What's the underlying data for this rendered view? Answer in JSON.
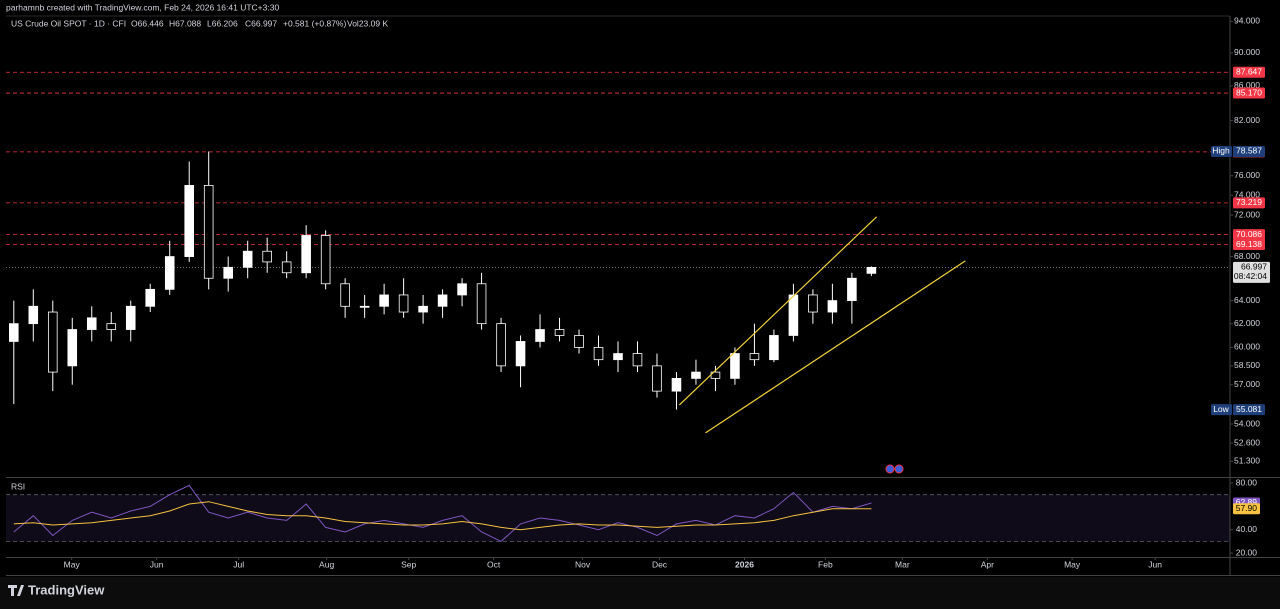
{
  "attribution": "parhamnb created with TradingView.com, Feb 24, 2026 16:41 UTC+3:30",
  "footer": {
    "logo": "TradingView"
  },
  "chart_data": {
    "type": "candlestick",
    "symbol": "US Crude Oil SPOT · 1D · CFI",
    "ohlc_legend": [
      {
        "value": 66.446,
        "label": "O66.446"
      },
      {
        "value": 67.088,
        "label": "H67.088"
      },
      {
        "value": 66.206,
        "label": "L66.206"
      },
      {
        "value": 66.997,
        "label": "C66.997"
      }
    ],
    "change": "+0.581 (+0.87%)",
    "volume": "Vol23.09 K",
    "log_scale": true,
    "up_color": "#ffffff",
    "down_color": "#000000",
    "categories": [
      null,
      null,
      null,
      null,
      null,
      null,
      null,
      null,
      null,
      null,
      null,
      null,
      null,
      null,
      null,
      null,
      null,
      null,
      null,
      null,
      null,
      null,
      null,
      null,
      null,
      null,
      null,
      null,
      null,
      null,
      null,
      null,
      null,
      null,
      null,
      null,
      null,
      null,
      null,
      null,
      null,
      null,
      null,
      null,
      null
    ],
    "open": [
      60.5,
      62.0,
      63.0,
      58.5,
      61.5,
      62.0,
      61.5,
      63.5,
      65.0,
      68.0,
      75.0,
      66.0,
      67.0,
      68.5,
      67.5,
      66.5,
      70.0,
      65.5,
      63.5,
      63.5,
      64.5,
      63.0,
      63.5,
      64.5,
      65.5,
      62.0,
      58.5,
      60.5,
      61.5,
      61.0,
      60.0,
      59.0,
      59.5,
      58.5,
      56.5,
      57.5,
      58.0,
      57.5,
      59.5,
      59.0,
      61.0,
      64.5,
      63.0,
      64.0,
      66.446
    ],
    "high": [
      64.0,
      65.0,
      64.0,
      62.5,
      63.5,
      63.0,
      64.0,
      65.5,
      69.5,
      77.5,
      78.587,
      68.0,
      69.5,
      69.8,
      68.5,
      71.0,
      70.5,
      66.0,
      64.5,
      65.5,
      66.0,
      64.5,
      65.0,
      66.0,
      66.5,
      62.5,
      61.0,
      62.8,
      62.5,
      61.5,
      61.0,
      60.5,
      60.5,
      59.5,
      58.0,
      59.0,
      58.5,
      60.0,
      62.0,
      61.5,
      65.5,
      65.0,
      65.5,
      66.5,
      67.088
    ],
    "low": [
      55.5,
      60.5,
      56.5,
      57.0,
      60.5,
      60.5,
      60.5,
      63.0,
      64.5,
      67.5,
      65.0,
      64.8,
      66.0,
      66.5,
      66.0,
      66.0,
      65.0,
      62.5,
      62.5,
      62.8,
      62.5,
      62.0,
      62.5,
      63.5,
      61.5,
      58.0,
      56.8,
      60.0,
      60.5,
      59.5,
      58.5,
      58.0,
      58.0,
      56.0,
      55.081,
      57.0,
      56.5,
      57.0,
      58.5,
      58.8,
      60.5,
      62.0,
      62.0,
      62.0,
      66.206
    ],
    "close": [
      62.0,
      63.5,
      58.0,
      61.5,
      62.5,
      61.5,
      63.5,
      65.0,
      68.0,
      75.0,
      66.0,
      67.0,
      68.5,
      67.5,
      66.5,
      70.0,
      65.5,
      63.5,
      63.5,
      64.5,
      63.0,
      63.5,
      64.5,
      65.5,
      62.0,
      58.5,
      60.5,
      61.5,
      61.0,
      60.0,
      59.0,
      59.5,
      58.5,
      56.5,
      57.5,
      58.0,
      57.5,
      59.5,
      59.0,
      61.0,
      64.5,
      63.0,
      64.0,
      66.0,
      66.997
    ],
    "xlim": [
      -0.4,
      62.4
    ],
    "xticks": [
      {
        "value": 2.97,
        "label": "May"
      },
      {
        "value": 7.33,
        "label": "Jun"
      },
      {
        "value": 11.54,
        "label": "Jul"
      },
      {
        "value": 16.05,
        "label": "Aug"
      },
      {
        "value": 20.26,
        "label": "Sep"
      },
      {
        "value": 24.62,
        "label": "Oct"
      },
      {
        "value": 29.18,
        "label": "Nov"
      },
      {
        "value": 33.13,
        "label": "Dec"
      },
      {
        "value": 37.49,
        "label": "2026"
      },
      {
        "value": 41.64,
        "label": "Feb"
      },
      {
        "value": 45.59,
        "label": "Mar"
      },
      {
        "value": 49.95,
        "label": "Apr"
      },
      {
        "value": 54.3,
        "label": "May"
      },
      {
        "value": 58.56,
        "label": "Jun"
      }
    ],
    "ylim": [
      50.2,
      94.7
    ],
    "yticks": [
      {
        "value": 94,
        "label": "94.000"
      },
      {
        "value": 90,
        "label": "90.000"
      },
      {
        "value": 86,
        "label": "86.000"
      },
      {
        "value": 82,
        "label": "82.000"
      },
      {
        "value": 76,
        "label": "76.000"
      },
      {
        "value": 74,
        "label": "74.000"
      },
      {
        "value": 72,
        "label": "72.000"
      },
      {
        "value": 68,
        "label": "68.000"
      },
      {
        "value": 64,
        "label": "64.000"
      },
      {
        "value": 62,
        "label": "62.000"
      },
      {
        "value": 60,
        "label": "60.000"
      },
      {
        "value": 58.5,
        "label": "58.500"
      },
      {
        "value": 57,
        "label": "57.000"
      },
      {
        "value": 54,
        "label": "54.000"
      },
      {
        "value": 52.6,
        "label": "52.600"
      },
      {
        "value": 51.3,
        "label": "51.300"
      }
    ],
    "levels_color": "#f23645",
    "levels": [
      87.647,
      {
        "value": 85.17,
        "label": "85.170"
      },
      78.541,
      73.219,
      70.086,
      69.138
    ],
    "high_marker": {
      "label": "High",
      "value": 78.587
    },
    "low_marker": {
      "label": "Low",
      "value": 55.081
    },
    "last_price": {
      "value": 66.997,
      "countdown": "08:42:04"
    },
    "trendlines": [
      {
        "color": "#f0d13c",
        "x": [
          34.15,
          44.27
        ],
        "y": [
          55.44,
          71.83
        ]
      },
      {
        "color": "#f0d13c",
        "x": [
          35.49,
          48.82
        ],
        "y": [
          53.34,
          67.6
        ]
      }
    ],
    "rsi": {
      "title": "RSI",
      "ylim": [
        16.6,
        84.3
      ],
      "yticks": [
        {
          "value": 80,
          "label": "80.00"
        },
        {
          "value": 40,
          "label": "40.00"
        },
        {
          "value": 20,
          "label": "20.00"
        }
      ],
      "band": [
        30,
        70
      ],
      "series": [
        {
          "color": "#7e57c2",
          "values": [
            38,
            52,
            35,
            48,
            55,
            50,
            56,
            60,
            70,
            78,
            55,
            50,
            55,
            50,
            48,
            62,
            42,
            38,
            45,
            48,
            45,
            42,
            48,
            52,
            38,
            30,
            45,
            50,
            48,
            44,
            40,
            46,
            42,
            35,
            45,
            48,
            44,
            52,
            50,
            58,
            72,
            55,
            60,
            58,
            62.89
          ]
        },
        {
          "color": "#f5c242",
          "values": [
            45,
            46,
            44,
            45,
            46,
            48,
            50,
            52,
            56,
            62,
            64,
            60,
            56,
            53,
            52,
            52,
            50,
            47,
            46,
            45,
            44,
            44,
            45,
            47,
            45,
            42,
            40,
            42,
            44,
            45,
            44,
            44,
            43,
            42,
            43,
            44,
            44,
            45,
            46,
            48,
            52,
            55,
            58,
            58,
            57.9
          ],
          "last_label": "57.90"
        }
      ]
    }
  }
}
